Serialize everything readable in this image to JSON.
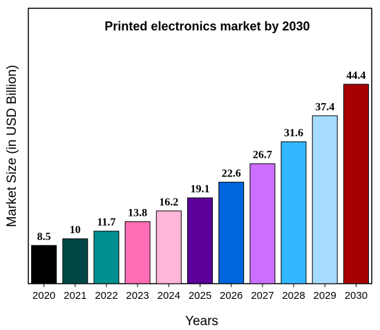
{
  "chart_data": {
    "type": "bar",
    "title": "Printed electronics market by 2030",
    "xlabel": "Years",
    "ylabel": "Market Size (in USD Billion)",
    "categories": [
      "2020",
      "2021",
      "2022",
      "2023",
      "2024",
      "2025",
      "2026",
      "2027",
      "2028",
      "2029",
      "2030"
    ],
    "values": [
      8.5,
      10,
      11.7,
      13.8,
      16.2,
      19.1,
      22.6,
      26.7,
      31.6,
      37.4,
      44.4
    ],
    "data_labels": [
      "8.5",
      "10",
      "11.7",
      "13.8",
      "16.2",
      "19.1",
      "22.6",
      "26.7",
      "31.6",
      "37.4",
      "44.4"
    ],
    "colors": [
      "#000000",
      "#004848",
      "#009090",
      "#ff6eb4",
      "#ffb6d9",
      "#5b0099",
      "#0066dd",
      "#cc6eff",
      "#33b8ff",
      "#a6dcff",
      "#a80000"
    ],
    "ylim": [
      0,
      52
    ],
    "grid": false,
    "legend": "none"
  }
}
